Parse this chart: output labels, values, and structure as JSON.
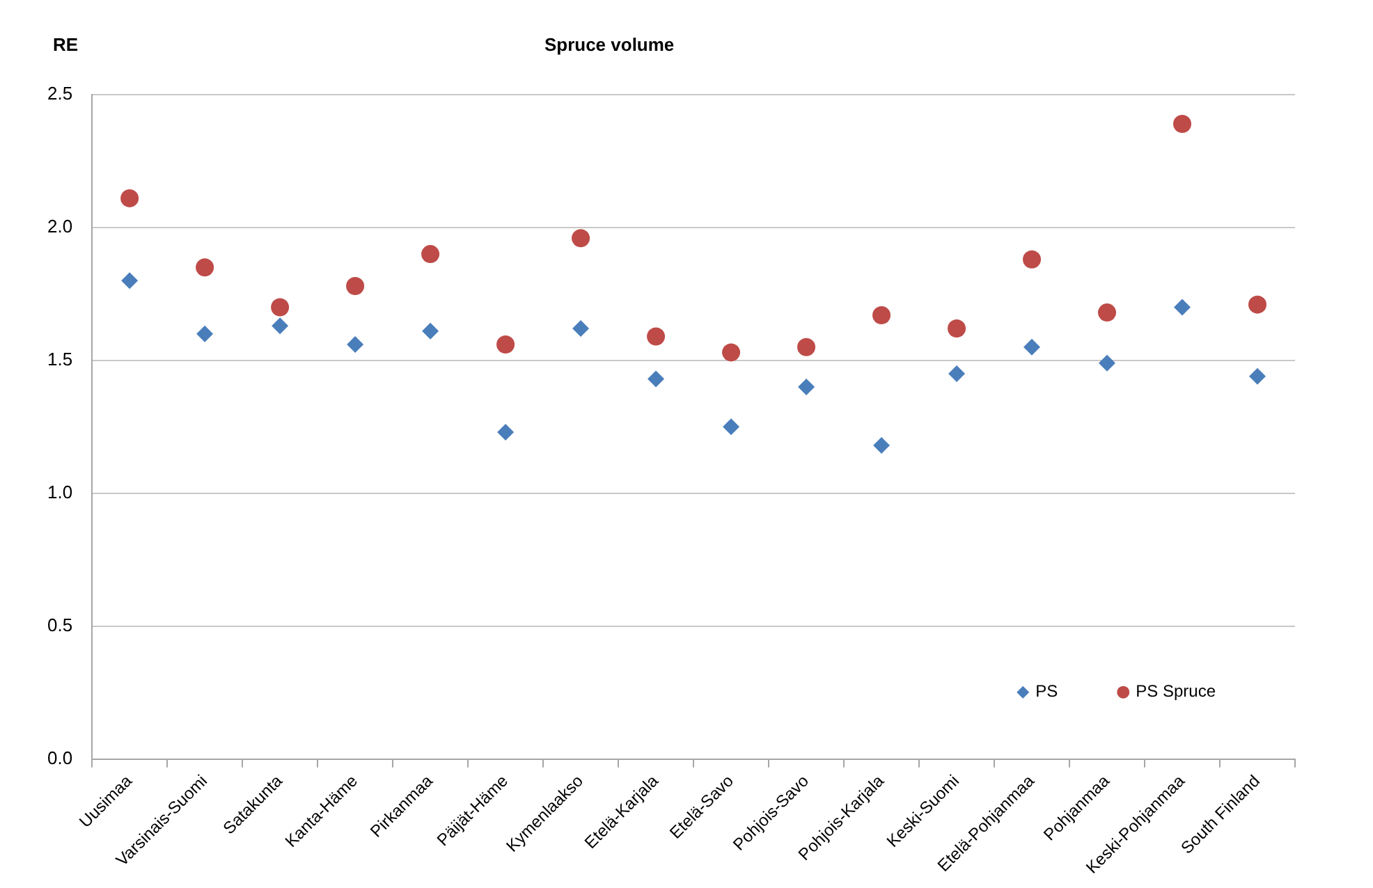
{
  "chart_data": {
    "type": "scatter",
    "title": "Spruce volume",
    "ylabel": "RE",
    "categories": [
      "Uusimaa",
      "Varsinais-Suomi",
      "Satakunta",
      "Kanta-Häme",
      "Pirkanmaa",
      "Päijät-Häme",
      "Kymenlaakso",
      "Etelä-Karjala",
      "Etelä-Savo",
      "Pohjois-Savo",
      "Pohjois-Karjala",
      "Keski-Suomi",
      "Etelä-Pohjanmaa",
      "Pohjanmaa",
      "Keski-Pohjanmaa",
      "South Finland"
    ],
    "series": [
      {
        "name": "PS",
        "color": "#4a7ebb",
        "marker": "diamond",
        "values": [
          1.8,
          1.6,
          1.63,
          1.56,
          1.61,
          1.23,
          1.62,
          1.43,
          1.25,
          1.4,
          1.18,
          1.45,
          1.55,
          1.49,
          1.7,
          1.44
        ]
      },
      {
        "name": "PS Spruce",
        "color": "#be4b48",
        "marker": "circle",
        "values": [
          2.11,
          1.85,
          1.7,
          1.78,
          1.9,
          1.56,
          1.96,
          1.59,
          1.53,
          1.55,
          1.67,
          1.62,
          1.88,
          1.68,
          2.39,
          1.71
        ]
      }
    ],
    "ylim": [
      0,
      2.5
    ],
    "yticks": [
      {
        "value": 0,
        "label": "0.0"
      },
      {
        "value": 0.5,
        "label": "0.5"
      },
      {
        "value": 1,
        "label": "1.0"
      },
      {
        "value": 1.5,
        "label": "1.5"
      },
      {
        "value": 2,
        "label": "2.0"
      },
      {
        "value": 2.5,
        "label": "2.5"
      }
    ],
    "grid": "y",
    "legend": "bottom right"
  }
}
